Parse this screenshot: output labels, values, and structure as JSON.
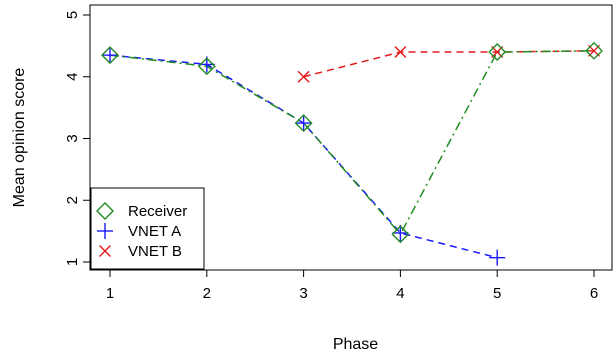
{
  "chart_data": {
    "type": "line",
    "xlabel": "Phase",
    "ylabel": "Mean opinion score",
    "xlim": [
      1,
      6
    ],
    "ylim": [
      1,
      5
    ],
    "x_ticks": [
      1,
      2,
      3,
      4,
      5,
      6
    ],
    "y_ticks": [
      1,
      2,
      3,
      4,
      5
    ],
    "legend_position": "bottom-left",
    "grid": false,
    "series": [
      {
        "name": "Receiver",
        "marker": "diamond",
        "line_style": "dot-dash",
        "color": "#228B22",
        "x": [
          1,
          2,
          3,
          4,
          5,
          6
        ],
        "y": [
          4.35,
          4.17,
          3.25,
          1.45,
          4.4,
          4.42
        ]
      },
      {
        "name": "VNET A",
        "marker": "plus",
        "line_style": "dashed",
        "color": "#1a1aff",
        "x": [
          1,
          2,
          3,
          4,
          5
        ],
        "y": [
          4.35,
          4.2,
          3.25,
          1.47,
          1.07
        ]
      },
      {
        "name": "VNET B",
        "marker": "cross",
        "line_style": "dashed",
        "color": "#e31a1c",
        "x": [
          3,
          4,
          5,
          6
        ],
        "y": [
          4.0,
          4.4,
          4.4,
          4.42
        ]
      }
    ]
  }
}
